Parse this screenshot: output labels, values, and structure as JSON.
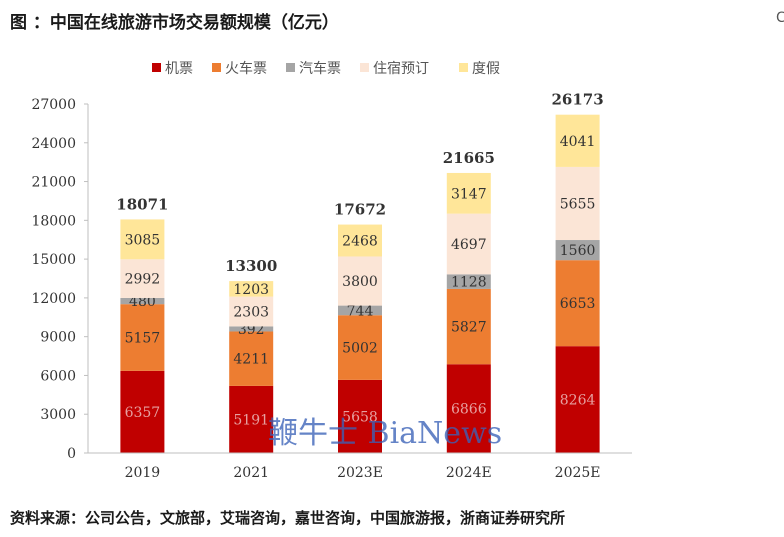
{
  "title": "图 ：中国在线旅游市场交易额规模（亿元）",
  "source": "资料来源：公司公告，文旅部，艾瑞咨询，嘉世咨询，中国旅游报，浙商证券研究所",
  "watermark": "鞭牛士 BiaNews",
  "edge_glyph": "C",
  "chart_data": {
    "type": "bar",
    "stacked": true,
    "categories": [
      "2019",
      "2021",
      "2023E",
      "2024E",
      "2025E"
    ],
    "series": [
      {
        "name": "机票",
        "color": "#c00000",
        "values": [
          6357,
          5191,
          5658,
          6866,
          8264
        ]
      },
      {
        "name": "火车票",
        "color": "#ed7d31",
        "values": [
          5157,
          4211,
          5002,
          5827,
          6653
        ]
      },
      {
        "name": "汽车票",
        "color": "#a5a5a5",
        "values": [
          480,
          392,
          744,
          1128,
          1560
        ]
      },
      {
        "name": "住宿预订",
        "color": "#fbe5d6",
        "values": [
          2992,
          2303,
          3800,
          4697,
          5655
        ]
      },
      {
        "name": "度假",
        "color": "#ffe699",
        "values": [
          3085,
          1203,
          2468,
          3147,
          4041
        ]
      }
    ],
    "totals": [
      18071,
      13300,
      17672,
      21665,
      26173
    ],
    "yticks": [
      0,
      3000,
      6000,
      9000,
      12000,
      15000,
      18000,
      21000,
      24000,
      27000
    ],
    "ylim": [
      0,
      27000
    ],
    "legend": "top",
    "grid": false
  }
}
